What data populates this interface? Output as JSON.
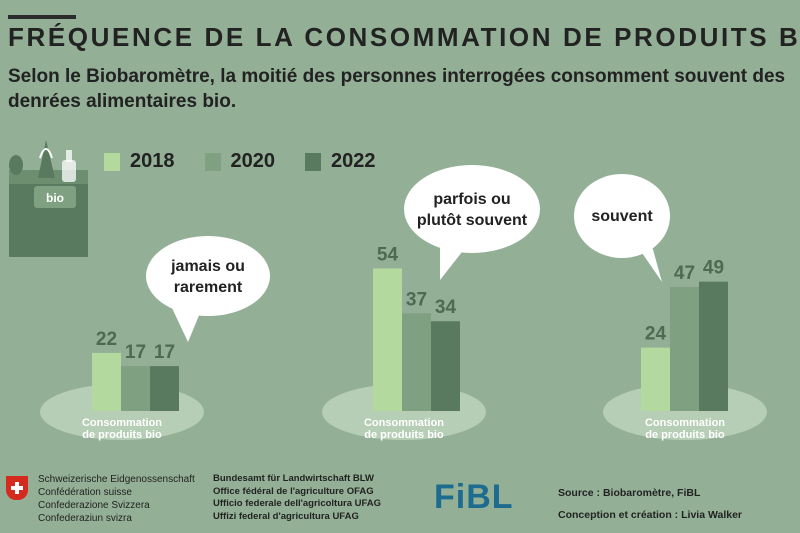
{
  "title": "FRÉQUENCE DE LA CONSOMMATION DE PRODUITS BIO",
  "subtitle": "Selon le Biobaromètre, la moitié des personnes interrogées consomment souvent des denrées alimentaires bio.",
  "bag_label": "bio",
  "colors": {
    "y2018": "#b4d99e",
    "y2020": "#7fa081",
    "y2022": "#5a7a5f",
    "background": "#93b096"
  },
  "chart_data": {
    "type": "bar",
    "series": [
      {
        "name": "2018",
        "values": [
          22,
          54,
          24
        ]
      },
      {
        "name": "2020",
        "values": [
          17,
          37,
          47
        ]
      },
      {
        "name": "2022",
        "values": [
          17,
          34,
          49
        ]
      }
    ],
    "categories": [
      [
        "jamais ou",
        "rarement"
      ],
      [
        "parfois ou",
        "plutôt souvent"
      ],
      [
        "souvent"
      ]
    ],
    "group_label": [
      "Consommation",
      "de produits bio"
    ],
    "legend_position": "top"
  },
  "footer": {
    "federal": [
      "Schweizerische Eidgenossenschaft",
      "Confédération suisse",
      "Confederazione Svizzera",
      "Confederaziun svizra"
    ],
    "office": [
      "Bundesamt für Landwirtschaft BLW",
      "Office fédéral de l'agriculture OFAG",
      "Ufficio federale dell'agricoltura UFAG",
      "Uffizi federal d'agricultura UFAG"
    ],
    "logo": "FiBL",
    "source_label": "Source :",
    "source_value": "Biobaromètre, FiBL",
    "credit_label": "Conception et création :",
    "credit_value": "Livia Walker"
  }
}
